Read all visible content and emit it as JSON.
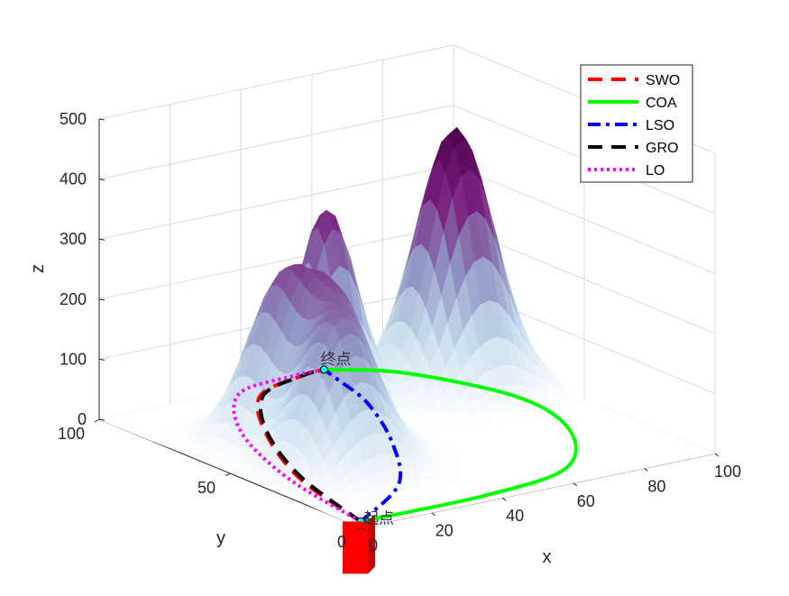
{
  "chart_data": {
    "type": "surface3d",
    "xlabel": "x",
    "ylabel": "y",
    "zlabel": "z",
    "x_ticks": [
      "0",
      "20",
      "40",
      "60",
      "80",
      "100"
    ],
    "y_ticks": [
      "0",
      "50",
      "100"
    ],
    "z_ticks": [
      "0",
      "100",
      "200",
      "300",
      "400",
      "500"
    ],
    "xlim": [
      0,
      100
    ],
    "ylim": [
      0,
      100
    ],
    "zlim": [
      0,
      500
    ],
    "grid": true,
    "legend_position": "top-right",
    "surface_colormap": [
      "#ffffff",
      "#c8ddee",
      "#8e92c2",
      "#7a1f7e",
      "#4d004b"
    ],
    "peaks": [
      {
        "x": 82,
        "y": 75,
        "height": 430,
        "sigma": 9
      },
      {
        "x": 48,
        "y": 78,
        "height": 330,
        "sigma": 7
      },
      {
        "x": 25,
        "y": 65,
        "height": 240,
        "sigma": 8
      },
      {
        "x": 22,
        "y": 38,
        "height": 235,
        "sigma": 9
      },
      {
        "x": 32,
        "y": 52,
        "height": 190,
        "sigma": 8
      }
    ],
    "start_label": "起点",
    "end_label": "终点",
    "start_point": {
      "x": 0,
      "y": 0,
      "z": 10
    },
    "end_point": {
      "x": 62,
      "y": 98,
      "z": 10
    },
    "series": [
      {
        "name": "SWO",
        "color": "#ff0000",
        "style": "dashed",
        "points": [
          [
            0,
            0,
            10
          ],
          [
            8,
            34,
            10
          ],
          [
            22,
            66,
            10
          ],
          [
            38,
            90,
            10
          ],
          [
            55,
            97,
            10
          ],
          [
            62,
            98,
            10
          ]
        ]
      },
      {
        "name": "COA",
        "color": "#00ff00",
        "style": "solid",
        "points": [
          [
            0,
            0,
            10
          ],
          [
            35,
            0,
            10
          ],
          [
            62,
            6,
            10
          ],
          [
            80,
            28,
            10
          ],
          [
            86,
            55,
            10
          ],
          [
            76,
            85,
            10
          ],
          [
            62,
            98,
            10
          ]
        ]
      },
      {
        "name": "LSO",
        "color": "#0000ff",
        "style": "dashdot",
        "points": [
          [
            0,
            0,
            10
          ],
          [
            24,
            18,
            10
          ],
          [
            42,
            45,
            10
          ],
          [
            55,
            72,
            10
          ],
          [
            60,
            90,
            10
          ],
          [
            62,
            98,
            10
          ]
        ]
      },
      {
        "name": "GRO",
        "color": "#000000",
        "style": "dashed",
        "points": [
          [
            0,
            0,
            10
          ],
          [
            9,
            35,
            10
          ],
          [
            23,
            67,
            10
          ],
          [
            39,
            90,
            10
          ],
          [
            55,
            97,
            10
          ],
          [
            62,
            98,
            10
          ]
        ]
      },
      {
        "name": "LO",
        "color": "#ff00ff",
        "style": "dotted",
        "points": [
          [
            0,
            0,
            10
          ],
          [
            6,
            36,
            10
          ],
          [
            18,
            70,
            10
          ],
          [
            35,
            94,
            10
          ],
          [
            53,
            98,
            10
          ],
          [
            62,
            98,
            10
          ]
        ]
      }
    ],
    "obstacle_color": "#ff0000"
  }
}
